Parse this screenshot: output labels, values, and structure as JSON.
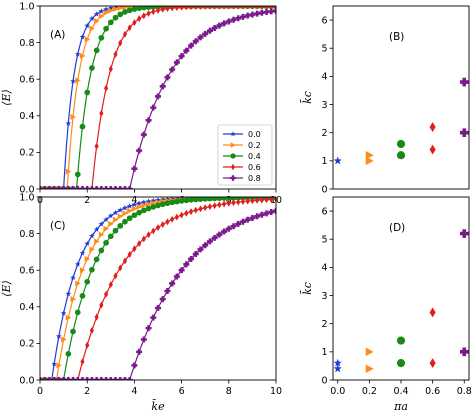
{
  "chart_data": [
    {
      "panel": "(A)",
      "type": "line",
      "xlim": [
        0,
        10
      ],
      "ylim": [
        0,
        1
      ],
      "xticks": [
        "0",
        "2",
        "4",
        "6",
        "8",
        "10"
      ],
      "yticks": [
        "0.0",
        "0.2",
        "0.4",
        "0.6",
        "0.8",
        "1.0"
      ],
      "xlabel": "",
      "ylabel": "⟨E⟩",
      "legend": {
        "placement": "lower-right",
        "entries": [
          "0.0",
          "0.2",
          "0.4",
          "0.6",
          "0.8"
        ]
      },
      "series": [
        {
          "name": "0.0",
          "color": "#1f3dd6",
          "marker": "star",
          "kc": 1.0,
          "width": 0.45
        },
        {
          "name": "0.2",
          "color": "#ff8c1a",
          "marker": "triangle-right",
          "kc": 1.15,
          "width": 0.5
        },
        {
          "name": "0.4",
          "color": "#178a17",
          "marker": "circle",
          "kc": 1.55,
          "width": 0.6
        },
        {
          "name": "0.6",
          "color": "#e01e1e",
          "marker": "diamond",
          "kc": 2.2,
          "width": 0.75
        },
        {
          "name": "0.8",
          "color": "#7a1a8c",
          "marker": "plus",
          "kc": 3.8,
          "width": 1.7
        }
      ]
    },
    {
      "panel": "(B)",
      "type": "scatter",
      "xlim": [
        -0.03,
        0.83
      ],
      "ylim": [
        0,
        6.5
      ],
      "xticks": [],
      "yticks": [
        "0",
        "1",
        "2",
        "3",
        "4",
        "5",
        "6"
      ],
      "xlabel": "",
      "ylabel": "k̄c",
      "points": [
        {
          "x": 0.0,
          "y": 1.0,
          "color": "#1f3dd6",
          "marker": "star"
        },
        {
          "x": 0.2,
          "y": 1.0,
          "color": "#ff8c1a",
          "marker": "triangle-right"
        },
        {
          "x": 0.2,
          "y": 1.2,
          "color": "#ff8c1a",
          "marker": "triangle-right"
        },
        {
          "x": 0.4,
          "y": 1.2,
          "color": "#178a17",
          "marker": "circle"
        },
        {
          "x": 0.4,
          "y": 1.6,
          "color": "#178a17",
          "marker": "circle"
        },
        {
          "x": 0.6,
          "y": 1.4,
          "color": "#e01e1e",
          "marker": "diamond"
        },
        {
          "x": 0.6,
          "y": 2.2,
          "color": "#e01e1e",
          "marker": "diamond"
        },
        {
          "x": 0.8,
          "y": 2.0,
          "color": "#7a1a8c",
          "marker": "plus"
        },
        {
          "x": 0.8,
          "y": 3.8,
          "color": "#7a1a8c",
          "marker": "plus"
        }
      ]
    },
    {
      "panel": "(C)",
      "type": "line",
      "xlim": [
        0,
        10
      ],
      "ylim": [
        0,
        1
      ],
      "xticks": [
        "0",
        "2",
        "4",
        "6",
        "8",
        "10"
      ],
      "yticks": [
        "0.0",
        "0.2",
        "0.4",
        "0.6",
        "0.8",
        "1.0"
      ],
      "xlabel": "k̄e",
      "ylabel": "⟨E⟩",
      "series": [
        {
          "name": "0.0",
          "color": "#1f3dd6",
          "marker": "star",
          "kc": 0.5,
          "width": 1.1
        },
        {
          "name": "0.2",
          "color": "#ff8c1a",
          "marker": "triangle-right",
          "kc": 0.7,
          "width": 1.2
        },
        {
          "name": "0.4",
          "color": "#178a17",
          "marker": "circle",
          "kc": 1.0,
          "width": 1.3
        },
        {
          "name": "0.6",
          "color": "#e01e1e",
          "marker": "diamond",
          "kc": 1.6,
          "width": 1.9
        },
        {
          "name": "0.8",
          "color": "#7a1a8c",
          "marker": "plus",
          "kc": 3.8,
          "width": 2.4
        }
      ]
    },
    {
      "panel": "(D)",
      "type": "scatter",
      "xlim": [
        -0.03,
        0.83
      ],
      "ylim": [
        0,
        6.5
      ],
      "xticks": [
        "0.0",
        "0.2",
        "0.4",
        "0.6",
        "0.8"
      ],
      "yticks": [
        "0",
        "1",
        "2",
        "3",
        "4",
        "5",
        "6"
      ],
      "xlabel": "πa",
      "ylabel": "k̄c",
      "points": [
        {
          "x": 0.0,
          "y": 0.4,
          "color": "#1f3dd6",
          "marker": "star"
        },
        {
          "x": 0.0,
          "y": 0.6,
          "color": "#1f3dd6",
          "marker": "star"
        },
        {
          "x": 0.2,
          "y": 0.4,
          "color": "#ff8c1a",
          "marker": "triangle-right"
        },
        {
          "x": 0.2,
          "y": 1.0,
          "color": "#ff8c1a",
          "marker": "triangle-right"
        },
        {
          "x": 0.4,
          "y": 0.6,
          "color": "#178a17",
          "marker": "circle"
        },
        {
          "x": 0.4,
          "y": 1.4,
          "color": "#178a17",
          "marker": "circle"
        },
        {
          "x": 0.6,
          "y": 0.6,
          "color": "#e01e1e",
          "marker": "diamond"
        },
        {
          "x": 0.6,
          "y": 2.4,
          "color": "#e01e1e",
          "marker": "diamond"
        },
        {
          "x": 0.8,
          "y": 1.0,
          "color": "#7a1a8c",
          "marker": "plus"
        },
        {
          "x": 0.8,
          "y": 5.2,
          "color": "#7a1a8c",
          "marker": "plus"
        }
      ]
    }
  ]
}
